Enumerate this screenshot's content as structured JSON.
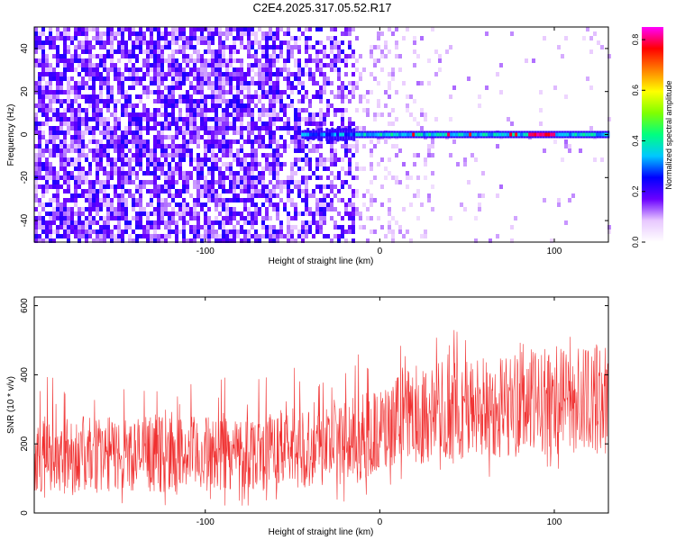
{
  "title": "C2E4.2025.317.05.52.R17",
  "chart_data": [
    {
      "type": "heatmap",
      "xlabel": "Height of straight line (km)",
      "ylabel": "Frequency (Hz)",
      "xlim": [
        -198,
        131
      ],
      "ylim": [
        -50,
        50
      ],
      "xticks": [
        -100,
        0,
        100
      ],
      "yticks": [
        -40,
        -20,
        0,
        20,
        40
      ],
      "xtick_labels": [
        "-100",
        "0",
        "100"
      ],
      "ytick_labels": [
        "-40",
        "-20",
        "0",
        "20",
        "40"
      ],
      "colorbar": {
        "label": "Normalized spectral amplitude",
        "range": [
          0,
          0.85
        ],
        "ticks": [
          0.0,
          0.2,
          0.4,
          0.6,
          0.8
        ],
        "tick_labels": [
          "0.0",
          "0.2",
          "0.4",
          "0.6",
          "0.8"
        ],
        "colors": [
          "#ffffff",
          "#e8c8ff",
          "#6a00ff",
          "#0000ff",
          "#00c8ff",
          "#00ff80",
          "#80ff00",
          "#ffff00",
          "#ff8000",
          "#ff0000",
          "#ff00ff"
        ]
      },
      "features": {
        "noise_region_x": [
          -198,
          -15
        ],
        "signal_line_frequency": 0,
        "signal_line_x": [
          -45,
          131
        ],
        "strong_peak_x": [
          85,
          100
        ]
      }
    },
    {
      "type": "line",
      "xlabel": "Height of straight line (km)",
      "ylabel": "SNR (10 * v/v)",
      "xlim": [
        -198,
        131
      ],
      "ylim": [
        0,
        625
      ],
      "xticks": [
        -100,
        0,
        100
      ],
      "yticks": [
        0,
        200,
        400,
        600
      ],
      "xtick_labels": [
        "-100",
        "0",
        "100"
      ],
      "ytick_labels": [
        "0",
        "200",
        "400",
        "600"
      ],
      "series_color": "#f03030",
      "envelope": {
        "x": [
          -198,
          -150,
          -100,
          -50,
          -20,
          0,
          20,
          50,
          80,
          100,
          131
        ],
        "low": [
          60,
          60,
          60,
          70,
          80,
          110,
          140,
          150,
          160,
          170,
          170
        ],
        "high": [
          280,
          280,
          280,
          300,
          330,
          360,
          430,
          450,
          470,
          480,
          490
        ]
      }
    }
  ]
}
